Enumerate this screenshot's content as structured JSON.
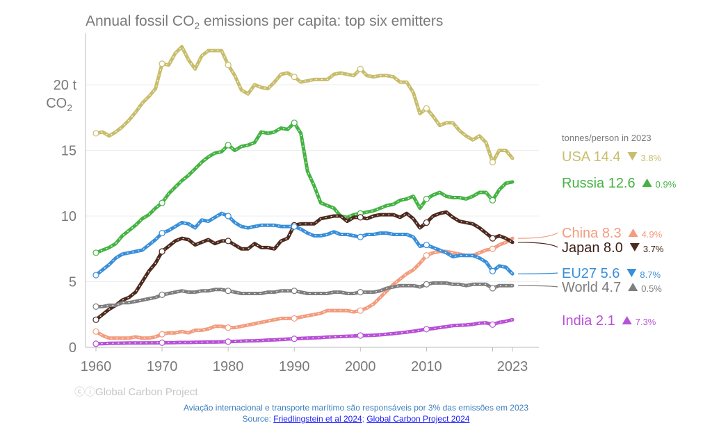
{
  "chart_data": {
    "type": "line",
    "title": "Annual fossil CO2 emissions per capita: top six emitters",
    "title_main": "Annual fossil CO",
    "title_sub": "2",
    "title_rest": " emissions per capita: top six emitters",
    "y_unit_line1": "20 t",
    "y_unit_line2_main": "CO",
    "y_unit_line2_sub": "2",
    "ylim": [
      0,
      24
    ],
    "xlim": [
      1959,
      2026
    ],
    "x_ticks": [
      1960,
      1970,
      1980,
      1990,
      2000,
      2010,
      2023
    ],
    "y_ticks": [
      0,
      5,
      10,
      15
    ],
    "grid": true,
    "legend_heading": "tonnes/person in 2023",
    "series": [
      {
        "name": "USA",
        "value_label": "14.4",
        "change": "3.8%",
        "direction": "down",
        "color": "#c8bd6c",
        "x": [
          1960,
          1961,
          1962,
          1963,
          1964,
          1965,
          1966,
          1967,
          1968,
          1969,
          1970,
          1971,
          1972,
          1973,
          1974,
          1975,
          1976,
          1977,
          1978,
          1979,
          1980,
          1981,
          1982,
          1983,
          1984,
          1985,
          1986,
          1987,
          1988,
          1989,
          1990,
          1991,
          1992,
          1993,
          1994,
          1995,
          1996,
          1997,
          1998,
          1999,
          2000,
          2001,
          2002,
          2003,
          2004,
          2005,
          2006,
          2007,
          2008,
          2009,
          2010,
          2011,
          2012,
          2013,
          2014,
          2015,
          2016,
          2017,
          2018,
          2019,
          2020,
          2021,
          2022,
          2023
        ],
        "y": [
          16.3,
          16.4,
          16.1,
          16.4,
          16.8,
          17.3,
          17.9,
          18.6,
          19.1,
          19.7,
          21.6,
          21.5,
          22.4,
          22.9,
          21.9,
          21.2,
          22.2,
          22.6,
          22.6,
          22.6,
          21.5,
          20.7,
          19.6,
          19.3,
          20.0,
          19.8,
          19.7,
          20.2,
          20.8,
          20.9,
          20.6,
          20.2,
          20.3,
          20.4,
          20.4,
          20.4,
          20.8,
          20.9,
          20.8,
          20.7,
          21.2,
          20.7,
          20.6,
          20.7,
          20.7,
          20.6,
          20.2,
          20.2,
          19.4,
          17.8,
          18.2,
          17.6,
          16.9,
          17.1,
          17.1,
          16.5,
          16.1,
          15.8,
          16.1,
          15.6,
          14.1,
          15.0,
          15.0,
          14.4
        ]
      },
      {
        "name": "Russia",
        "value_label": "12.6",
        "change": "0.9%",
        "direction": "up",
        "color": "#45b344",
        "x": [
          1960,
          1961,
          1962,
          1963,
          1964,
          1965,
          1966,
          1967,
          1968,
          1969,
          1970,
          1971,
          1972,
          1973,
          1974,
          1975,
          1976,
          1977,
          1978,
          1979,
          1980,
          1981,
          1982,
          1983,
          1984,
          1985,
          1986,
          1987,
          1988,
          1989,
          1990,
          1991,
          1992,
          1993,
          1994,
          1995,
          1996,
          1997,
          1998,
          1999,
          2000,
          2001,
          2002,
          2003,
          2004,
          2005,
          2006,
          2007,
          2008,
          2009,
          2010,
          2011,
          2012,
          2013,
          2014,
          2015,
          2016,
          2017,
          2018,
          2019,
          2020,
          2021,
          2022,
          2023
        ],
        "y": [
          7.2,
          7.4,
          7.6,
          7.9,
          8.5,
          8.9,
          9.3,
          9.8,
          10.1,
          10.6,
          11.0,
          11.7,
          12.2,
          12.7,
          13.1,
          13.6,
          14.1,
          14.5,
          14.8,
          14.9,
          15.4,
          15.0,
          15.3,
          15.4,
          15.6,
          16.4,
          16.3,
          16.4,
          16.7,
          16.6,
          17.1,
          16.3,
          13.4,
          12.3,
          11.0,
          10.8,
          10.6,
          10.0,
          9.9,
          10.1,
          10.2,
          10.3,
          10.4,
          10.6,
          10.8,
          10.9,
          11.2,
          11.3,
          11.5,
          10.6,
          11.3,
          11.6,
          11.8,
          11.5,
          11.4,
          11.4,
          11.3,
          11.5,
          11.8,
          11.8,
          11.2,
          12.0,
          12.5,
          12.6
        ]
      },
      {
        "name": "China",
        "value_label": "8.3",
        "change": "4.9%",
        "direction": "up",
        "color": "#f39c7e",
        "x": [
          1960,
          1961,
          1962,
          1963,
          1964,
          1965,
          1966,
          1967,
          1968,
          1969,
          1970,
          1971,
          1972,
          1973,
          1974,
          1975,
          1976,
          1977,
          1978,
          1979,
          1980,
          1981,
          1982,
          1983,
          1984,
          1985,
          1986,
          1987,
          1988,
          1989,
          1990,
          1991,
          1992,
          1993,
          1994,
          1995,
          1996,
          1997,
          1998,
          1999,
          2000,
          2001,
          2002,
          2003,
          2004,
          2005,
          2006,
          2007,
          2008,
          2009,
          2010,
          2011,
          2012,
          2013,
          2014,
          2015,
          2016,
          2017,
          2018,
          2019,
          2020,
          2021,
          2022,
          2023
        ],
        "y": [
          1.2,
          0.9,
          0.7,
          0.7,
          0.7,
          0.7,
          0.8,
          0.7,
          0.7,
          0.8,
          1.0,
          1.1,
          1.1,
          1.2,
          1.1,
          1.3,
          1.3,
          1.4,
          1.6,
          1.6,
          1.5,
          1.5,
          1.6,
          1.7,
          1.8,
          1.9,
          2.0,
          2.1,
          2.2,
          2.2,
          2.2,
          2.3,
          2.4,
          2.5,
          2.6,
          2.8,
          2.8,
          2.8,
          2.8,
          2.7,
          2.8,
          3.0,
          3.3,
          3.8,
          4.3,
          4.8,
          5.2,
          5.6,
          5.9,
          6.4,
          7.0,
          7.2,
          7.3,
          7.3,
          7.2,
          7.1,
          7.0,
          7.0,
          7.2,
          7.4,
          7.5,
          7.8,
          8.0,
          8.3
        ]
      },
      {
        "name": "Japan",
        "value_label": "8.0",
        "change": "3.7%",
        "direction": "down",
        "color": "#4e2a1e",
        "x": [
          1960,
          1961,
          1962,
          1963,
          1964,
          1965,
          1966,
          1967,
          1968,
          1969,
          1970,
          1971,
          1972,
          1973,
          1974,
          1975,
          1976,
          1977,
          1978,
          1979,
          1980,
          1981,
          1982,
          1983,
          1984,
          1985,
          1986,
          1987,
          1988,
          1989,
          1990,
          1991,
          1992,
          1993,
          1994,
          1995,
          1996,
          1997,
          1998,
          1999,
          2000,
          2001,
          2002,
          2003,
          2004,
          2005,
          2006,
          2007,
          2008,
          2009,
          2010,
          2011,
          2012,
          2013,
          2014,
          2015,
          2016,
          2017,
          2018,
          2019,
          2020,
          2021,
          2022,
          2023
        ],
        "y": [
          2.1,
          2.5,
          2.9,
          3.2,
          3.6,
          3.8,
          4.2,
          5.0,
          5.8,
          6.4,
          7.3,
          7.7,
          8.1,
          8.3,
          8.2,
          7.8,
          8.0,
          8.2,
          7.9,
          8.1,
          8.1,
          7.8,
          7.5,
          7.5,
          7.9,
          7.6,
          7.6,
          7.5,
          8.1,
          8.3,
          9.3,
          9.4,
          9.4,
          9.4,
          9.8,
          9.9,
          10.0,
          10.0,
          9.6,
          9.9,
          9.9,
          9.8,
          10.0,
          10.1,
          10.1,
          10.1,
          9.9,
          10.2,
          9.8,
          9.1,
          9.5,
          10.0,
          10.2,
          10.3,
          9.9,
          9.6,
          9.5,
          9.4,
          9.1,
          8.7,
          8.3,
          8.5,
          8.3,
          8.0
        ]
      },
      {
        "name": "EU27",
        "value_label": "5.6",
        "change": "8.7%",
        "direction": "down",
        "color": "#3a8fd9",
        "x": [
          1960,
          1961,
          1962,
          1963,
          1964,
          1965,
          1966,
          1967,
          1968,
          1969,
          1970,
          1971,
          1972,
          1973,
          1974,
          1975,
          1976,
          1977,
          1978,
          1979,
          1980,
          1981,
          1982,
          1983,
          1984,
          1985,
          1986,
          1987,
          1988,
          1989,
          1990,
          1991,
          1992,
          1993,
          1994,
          1995,
          1996,
          1997,
          1998,
          1999,
          2000,
          2001,
          2002,
          2003,
          2004,
          2005,
          2006,
          2007,
          2008,
          2009,
          2010,
          2011,
          2012,
          2013,
          2014,
          2015,
          2016,
          2017,
          2018,
          2019,
          2020,
          2021,
          2022,
          2023
        ],
        "y": [
          5.5,
          5.9,
          6.3,
          6.8,
          7.1,
          7.2,
          7.3,
          7.4,
          7.8,
          8.2,
          8.7,
          8.9,
          9.2,
          9.5,
          9.4,
          9.1,
          9.7,
          9.6,
          9.9,
          10.2,
          10.0,
          9.5,
          9.2,
          9.1,
          9.2,
          9.3,
          9.3,
          9.3,
          9.2,
          9.2,
          9.2,
          9.0,
          8.7,
          8.5,
          8.5,
          8.6,
          8.8,
          8.6,
          8.6,
          8.5,
          8.4,
          8.6,
          8.6,
          8.7,
          8.7,
          8.6,
          8.6,
          8.6,
          8.4,
          7.7,
          7.8,
          7.6,
          7.4,
          7.2,
          6.9,
          7.0,
          7.0,
          7.0,
          6.8,
          6.5,
          5.8,
          6.2,
          6.1,
          5.6
        ]
      },
      {
        "name": "World",
        "value_label": "4.7",
        "change": "0.5%",
        "direction": "up",
        "color": "#7e7e7e",
        "x": [
          1960,
          1961,
          1962,
          1963,
          1964,
          1965,
          1966,
          1967,
          1968,
          1969,
          1970,
          1971,
          1972,
          1973,
          1974,
          1975,
          1976,
          1977,
          1978,
          1979,
          1980,
          1981,
          1982,
          1983,
          1984,
          1985,
          1986,
          1987,
          1988,
          1989,
          1990,
          1991,
          1992,
          1993,
          1994,
          1995,
          1996,
          1997,
          1998,
          1999,
          2000,
          2001,
          2002,
          2003,
          2004,
          2005,
          2006,
          2007,
          2008,
          2009,
          2010,
          2011,
          2012,
          2013,
          2014,
          2015,
          2016,
          2017,
          2018,
          2019,
          2020,
          2021,
          2022,
          2023
        ],
        "y": [
          3.1,
          3.1,
          3.2,
          3.2,
          3.4,
          3.4,
          3.5,
          3.6,
          3.7,
          3.8,
          4.0,
          4.1,
          4.2,
          4.3,
          4.2,
          4.2,
          4.3,
          4.3,
          4.4,
          4.4,
          4.3,
          4.2,
          4.1,
          4.1,
          4.1,
          4.1,
          4.2,
          4.2,
          4.3,
          4.3,
          4.3,
          4.2,
          4.1,
          4.1,
          4.1,
          4.1,
          4.2,
          4.2,
          4.1,
          4.1,
          4.2,
          4.2,
          4.2,
          4.3,
          4.5,
          4.6,
          4.7,
          4.7,
          4.7,
          4.6,
          4.8,
          4.9,
          4.9,
          4.9,
          4.8,
          4.8,
          4.7,
          4.8,
          4.8,
          4.8,
          4.5,
          4.7,
          4.7,
          4.7
        ]
      },
      {
        "name": "India",
        "value_label": "2.1",
        "change": "7.3%",
        "direction": "up",
        "color": "#b751d6",
        "x": [
          1960,
          1961,
          1962,
          1963,
          1964,
          1965,
          1966,
          1967,
          1968,
          1969,
          1970,
          1971,
          1972,
          1973,
          1974,
          1975,
          1976,
          1977,
          1978,
          1979,
          1980,
          1981,
          1982,
          1983,
          1984,
          1985,
          1986,
          1987,
          1988,
          1989,
          1990,
          1991,
          1992,
          1993,
          1994,
          1995,
          1996,
          1997,
          1998,
          1999,
          2000,
          2001,
          2002,
          2003,
          2004,
          2005,
          2006,
          2007,
          2008,
          2009,
          2010,
          2011,
          2012,
          2013,
          2014,
          2015,
          2016,
          2017,
          2018,
          2019,
          2020,
          2021,
          2022,
          2023
        ],
        "y": [
          0.27,
          0.28,
          0.3,
          0.31,
          0.32,
          0.33,
          0.33,
          0.33,
          0.34,
          0.34,
          0.35,
          0.35,
          0.36,
          0.37,
          0.37,
          0.38,
          0.39,
          0.4,
          0.4,
          0.42,
          0.43,
          0.45,
          0.47,
          0.49,
          0.5,
          0.52,
          0.55,
          0.57,
          0.6,
          0.63,
          0.65,
          0.68,
          0.7,
          0.72,
          0.74,
          0.78,
          0.8,
          0.82,
          0.84,
          0.86,
          0.9,
          0.9,
          0.92,
          0.95,
          1.0,
          1.05,
          1.1,
          1.16,
          1.22,
          1.3,
          1.38,
          1.43,
          1.51,
          1.57,
          1.65,
          1.68,
          1.7,
          1.75,
          1.84,
          1.87,
          1.73,
          1.9,
          1.98,
          2.1
        ]
      }
    ]
  },
  "watermark": "Global Carbon Project",
  "footnote": "Aviação internacional e transporte marítimo são responsáveis por 3% das emissões em 2023",
  "source": {
    "prefix": "Source: ",
    "link1": "Friedlingstein et al 2024",
    "sep": "; ",
    "link2": "Global Carbon Project 2024"
  }
}
